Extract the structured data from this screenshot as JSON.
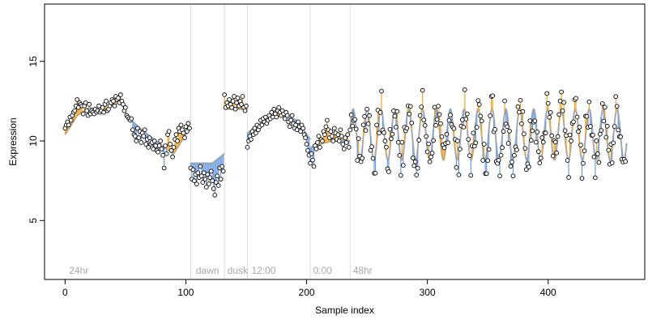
{
  "chart_data": {
    "type": "line",
    "title": "",
    "xlabel": "Sample index",
    "ylabel": "Expression",
    "xlim": [
      -17,
      480
    ],
    "ylim": [
      1.3,
      18.6
    ],
    "x_ticks": [
      0,
      100,
      200,
      300,
      400
    ],
    "y_ticks": [
      5,
      10,
      15
    ],
    "grid": false,
    "legend": "none",
    "colors": {
      "fit_line": "#a9a9a9",
      "above_fit": "#f5a623",
      "below_fit": "#6f9fe0",
      "point_fill": "#ffffff",
      "point_edge": "#000000",
      "phase_line": "#dddddd",
      "phase_text": "#a8a8a8"
    },
    "phase_markers": [
      {
        "x": 104,
        "label": ""
      },
      {
        "x": 132,
        "label": ""
      },
      {
        "x": 151,
        "label": ""
      },
      {
        "x": 203,
        "label": ""
      },
      {
        "x": 236,
        "label": ""
      }
    ],
    "phase_labels": [
      {
        "x": 2,
        "label": "24hr"
      },
      {
        "x": 107,
        "label": "dawn"
      },
      {
        "x": 133,
        "label": "dusk"
      },
      {
        "x": 153,
        "label": "12:00"
      },
      {
        "x": 204,
        "label": "0:00"
      },
      {
        "x": 237,
        "label": "48hr"
      }
    ],
    "segments": [
      {
        "from": 0,
        "to": 104,
        "shape": "smooth",
        "points": [
          [
            0,
            10.4
          ],
          [
            10,
            11.6
          ],
          [
            20,
            12.1
          ],
          [
            32,
            11.9
          ],
          [
            46,
            12.5
          ],
          [
            52,
            11.5
          ],
          [
            62,
            10.8
          ],
          [
            72,
            10.2
          ],
          [
            80,
            9.7
          ],
          [
            90,
            9.2
          ],
          [
            104,
            10.9
          ]
        ]
      },
      {
        "from": 104,
        "to": 132,
        "shape": "flat",
        "points": [
          [
            104,
            8.6
          ],
          [
            122,
            8.6
          ],
          [
            132,
            9.2
          ]
        ]
      },
      {
        "from": 132,
        "to": 151,
        "shape": "flat",
        "points": [
          [
            132,
            12.0
          ],
          [
            151,
            12.0
          ]
        ]
      },
      {
        "from": 151,
        "to": 203,
        "shape": "smooth",
        "points": [
          [
            151,
            10.5
          ],
          [
            160,
            11.0
          ],
          [
            172,
            11.5
          ],
          [
            182,
            11.6
          ],
          [
            192,
            11.3
          ],
          [
            203,
            10.1
          ]
        ]
      },
      {
        "from": 203,
        "to": 236,
        "shape": "flat",
        "points": [
          [
            203,
            9.6
          ],
          [
            216,
            9.9
          ],
          [
            228,
            10.1
          ],
          [
            236,
            10.0
          ]
        ]
      },
      {
        "from": 236,
        "to": 465,
        "shape": "oscillating",
        "period": 11.5,
        "amplitude": 1.6,
        "center": 10.4,
        "phase": 0.2
      }
    ],
    "samples": [
      [
        0,
        10.8
      ],
      [
        1,
        11.0
      ],
      [
        2,
        11.2
      ],
      [
        3,
        11.0
      ],
      [
        4,
        11.5
      ],
      [
        5,
        11.3
      ],
      [
        6,
        11.6
      ],
      [
        7,
        11.8
      ],
      [
        8,
        11.9
      ],
      [
        9,
        12.2
      ],
      [
        10,
        12.6
      ],
      [
        11,
        12.1
      ],
      [
        12,
        12.4
      ],
      [
        13,
        12.3
      ],
      [
        14,
        12.2
      ],
      [
        15,
        11.7
      ],
      [
        16,
        12.2
      ],
      [
        17,
        12.4
      ],
      [
        18,
        11.9
      ],
      [
        19,
        11.6
      ],
      [
        20,
        12.3
      ],
      [
        21,
        11.7
      ],
      [
        22,
        11.9
      ],
      [
        23,
        11.8
      ],
      [
        24,
        11.7
      ],
      [
        25,
        12.0
      ],
      [
        26,
        11.8
      ],
      [
        27,
        11.9
      ],
      [
        28,
        12.2
      ],
      [
        29,
        11.8
      ],
      [
        30,
        11.9
      ],
      [
        31,
        12.1
      ],
      [
        32,
        11.8
      ],
      [
        33,
        12.3
      ],
      [
        34,
        12.5
      ],
      [
        35,
        11.9
      ],
      [
        36,
        12.0
      ],
      [
        37,
        12.2
      ],
      [
        38,
        12.4
      ],
      [
        39,
        12.6
      ],
      [
        40,
        12.5
      ],
      [
        41,
        12.2
      ],
      [
        42,
        12.8
      ],
      [
        43,
        12.6
      ],
      [
        44,
        12.7
      ],
      [
        45,
        12.4
      ],
      [
        46,
        12.9
      ],
      [
        47,
        12.5
      ],
      [
        48,
        12.3
      ],
      [
        49,
        11.9
      ],
      [
        50,
        12.1
      ],
      [
        51,
        11.6
      ],
      [
        52,
        11.5
      ],
      [
        53,
        11.4
      ],
      [
        54,
        11.3
      ],
      [
        55,
        11.4
      ],
      [
        56,
        10.7
      ],
      [
        57,
        10.4
      ],
      [
        58,
        10.3
      ],
      [
        59,
        10.0
      ],
      [
        60,
        10.8
      ],
      [
        61,
        10.2
      ],
      [
        62,
        10.6
      ],
      [
        63,
        9.9
      ],
      [
        64,
        10.5
      ],
      [
        65,
        10.3
      ],
      [
        66,
        10.7
      ],
      [
        67,
        9.8
      ],
      [
        68,
        10.1
      ],
      [
        69,
        9.6
      ],
      [
        70,
        10.2
      ],
      [
        71,
        9.8
      ],
      [
        72,
        9.9
      ],
      [
        73,
        9.5
      ],
      [
        74,
        10.0
      ],
      [
        75,
        9.7
      ],
      [
        76,
        9.4
      ],
      [
        77,
        9.3
      ],
      [
        78,
        9.7
      ],
      [
        79,
        10.0
      ],
      [
        80,
        9.5
      ],
      [
        81,
        9.1
      ],
      [
        82,
        8.3
      ],
      [
        83,
        9.7
      ],
      [
        84,
        9.2
      ],
      [
        85,
        10.4
      ],
      [
        86,
        10.6
      ],
      [
        87,
        9.8
      ],
      [
        88,
        9.4
      ],
      [
        89,
        9.0
      ],
      [
        90,
        9.6
      ],
      [
        91,
        10.1
      ],
      [
        92,
        10.4
      ],
      [
        93,
        10.0
      ],
      [
        94,
        10.8
      ],
      [
        95,
        10.6
      ],
      [
        96,
        11.0
      ],
      [
        97,
        10.7
      ],
      [
        98,
        10.5
      ],
      [
        99,
        10.2
      ],
      [
        100,
        10.9
      ],
      [
        101,
        10.6
      ],
      [
        102,
        11.1
      ],
      [
        103,
        10.8
      ],
      [
        104,
        8.3
      ],
      [
        105,
        7.6
      ],
      [
        106,
        8.2
      ],
      [
        107,
        7.5
      ],
      [
        108,
        7.9
      ],
      [
        109,
        7.3
      ],
      [
        110,
        8.0
      ],
      [
        111,
        7.7
      ],
      [
        112,
        8.4
      ],
      [
        113,
        7.8
      ],
      [
        114,
        7.4
      ],
      [
        115,
        8.0
      ],
      [
        116,
        7.6
      ],
      [
        117,
        7.1
      ],
      [
        118,
        7.9
      ],
      [
        119,
        7.3
      ],
      [
        120,
        7.7
      ],
      [
        121,
        8.1
      ],
      [
        122,
        7.5
      ],
      [
        123,
        7.0
      ],
      [
        124,
        6.6
      ],
      [
        125,
        7.4
      ],
      [
        126,
        7.8
      ],
      [
        127,
        7.2
      ],
      [
        128,
        8.3
      ],
      [
        129,
        7.6
      ],
      [
        130,
        8.4
      ],
      [
        131,
        8.1
      ],
      [
        132,
        12.9
      ],
      [
        133,
        12.1
      ],
      [
        134,
        12.4
      ],
      [
        135,
        12.2
      ],
      [
        136,
        12.6
      ],
      [
        137,
        12.3
      ],
      [
        138,
        12.1
      ],
      [
        139,
        12.5
      ],
      [
        140,
        12.8
      ],
      [
        141,
        12.0
      ],
      [
        142,
        12.4
      ],
      [
        143,
        12.7
      ],
      [
        144,
        12.2
      ],
      [
        145,
        12.5
      ],
      [
        146,
        12.3
      ],
      [
        147,
        12.8
      ],
      [
        148,
        12.1
      ],
      [
        149,
        11.9
      ],
      [
        150,
        12.2
      ],
      [
        151,
        9.6
      ],
      [
        152,
        10.0
      ],
      [
        153,
        10.3
      ],
      [
        154,
        10.1
      ],
      [
        155,
        10.6
      ],
      [
        156,
        10.4
      ],
      [
        157,
        10.8
      ],
      [
        158,
        10.5
      ],
      [
        159,
        11.0
      ],
      [
        160,
        10.7
      ],
      [
        161,
        10.9
      ],
      [
        162,
        11.3
      ],
      [
        163,
        11.0
      ],
      [
        164,
        11.4
      ],
      [
        165,
        11.2
      ],
      [
        166,
        11.5
      ],
      [
        167,
        11.1
      ],
      [
        168,
        11.3
      ],
      [
        169,
        11.6
      ],
      [
        170,
        11.4
      ],
      [
        171,
        11.8
      ],
      [
        172,
        11.5
      ],
      [
        173,
        12.0
      ],
      [
        174,
        11.7
      ],
      [
        175,
        11.5
      ],
      [
        176,
        11.9
      ],
      [
        177,
        12.1
      ],
      [
        178,
        11.8
      ],
      [
        179,
        11.6
      ],
      [
        180,
        11.9
      ],
      [
        181,
        11.7
      ],
      [
        182,
        11.4
      ],
      [
        183,
        11.8
      ],
      [
        184,
        11.6
      ],
      [
        185,
        11.2
      ],
      [
        186,
        10.9
      ],
      [
        187,
        11.3
      ],
      [
        188,
        11.6
      ],
      [
        189,
        11.1
      ],
      [
        190,
        10.8
      ],
      [
        191,
        11.0
      ],
      [
        192,
        10.7
      ],
      [
        193,
        11.2
      ],
      [
        194,
        10.9
      ],
      [
        195,
        10.6
      ],
      [
        196,
        11.0
      ],
      [
        197,
        10.8
      ],
      [
        198,
        10.4
      ],
      [
        199,
        10.2
      ],
      [
        200,
        9.8
      ],
      [
        201,
        9.4
      ],
      [
        202,
        9.1
      ],
      [
        203,
        8.6
      ],
      [
        204,
        9.2
      ],
      [
        205,
        8.8
      ],
      [
        206,
        8.4
      ],
      [
        207,
        9.7
      ],
      [
        208,
        9.5
      ],
      [
        209,
        9.9
      ],
      [
        210,
        10.3
      ],
      [
        211,
        9.6
      ],
      [
        212,
        10.1
      ],
      [
        213,
        10.0
      ],
      [
        214,
        10.6
      ],
      [
        215,
        10.4
      ],
      [
        216,
        10.9
      ],
      [
        217,
        11.3
      ],
      [
        218,
        10.7
      ],
      [
        219,
        10.2
      ],
      [
        220,
        10.6
      ],
      [
        221,
        10.3
      ],
      [
        222,
        10.0
      ],
      [
        223,
        10.8
      ],
      [
        224,
        10.5
      ],
      [
        225,
        10.1
      ],
      [
        226,
        10.4
      ],
      [
        227,
        10.0
      ],
      [
        228,
        10.7
      ],
      [
        229,
        10.3
      ],
      [
        230,
        9.8
      ],
      [
        231,
        9.5
      ],
      [
        232,
        10.2
      ],
      [
        233,
        9.9
      ],
      [
        234,
        10.4
      ],
      [
        235,
        9.6
      ]
    ]
  }
}
